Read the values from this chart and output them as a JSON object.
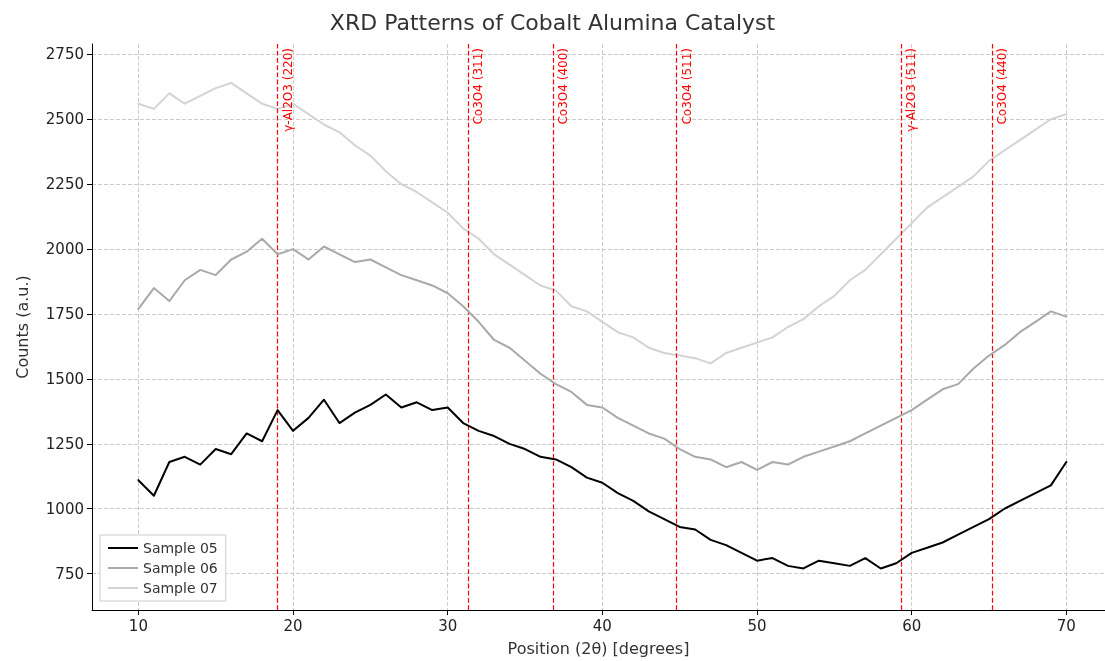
{
  "chart_data": {
    "type": "line",
    "title": "XRD Patterns of Cobalt Alumina Catalyst",
    "xlabel": "Position (2θ) [degrees]",
    "ylabel": "Counts (a.u.)",
    "x": [
      10,
      11,
      12,
      13,
      14,
      15,
      16,
      17,
      18,
      19,
      20,
      21,
      22,
      23,
      24,
      25,
      26,
      27,
      28,
      29,
      30,
      31,
      32,
      33,
      34,
      35,
      36,
      37,
      38,
      39,
      40,
      41,
      42,
      43,
      44,
      45,
      46,
      47,
      48,
      49,
      50,
      51,
      52,
      53,
      54,
      55,
      56,
      57,
      58,
      59,
      60,
      61,
      62,
      63,
      64,
      65,
      66,
      67,
      68,
      69,
      70
    ],
    "series": [
      {
        "name": "Sample 05",
        "color": "#000000",
        "values": [
          1110,
          1050,
          1180,
          1200,
          1170,
          1230,
          1210,
          1290,
          1260,
          1380,
          1300,
          1350,
          1420,
          1330,
          1370,
          1400,
          1440,
          1390,
          1410,
          1380,
          1390,
          1330,
          1300,
          1280,
          1250,
          1230,
          1200,
          1190,
          1160,
          1120,
          1100,
          1060,
          1030,
          990,
          960,
          930,
          920,
          880,
          860,
          830,
          800,
          810,
          780,
          770,
          800,
          790,
          780,
          810,
          770,
          790,
          830,
          850,
          870,
          900,
          930,
          960,
          1000,
          1030,
          1060,
          1090,
          1180
        ]
      },
      {
        "name": "Sample 06",
        "color": "#a9a9a9",
        "values": [
          1770,
          1850,
          1800,
          1880,
          1920,
          1900,
          1960,
          1990,
          2040,
          1980,
          2000,
          1960,
          2010,
          1980,
          1950,
          1960,
          1930,
          1900,
          1880,
          1860,
          1830,
          1780,
          1720,
          1650,
          1620,
          1570,
          1520,
          1480,
          1450,
          1400,
          1390,
          1350,
          1320,
          1290,
          1270,
          1230,
          1200,
          1190,
          1160,
          1180,
          1150,
          1180,
          1170,
          1200,
          1220,
          1240,
          1260,
          1290,
          1320,
          1350,
          1380,
          1420,
          1460,
          1480,
          1540,
          1590,
          1630,
          1680,
          1720,
          1760,
          1740
        ]
      },
      {
        "name": "Sample 07",
        "color": "#d3d3d3",
        "values": [
          2560,
          2540,
          2600,
          2560,
          2590,
          2620,
          2640,
          2600,
          2560,
          2540,
          2560,
          2520,
          2480,
          2450,
          2400,
          2360,
          2300,
          2250,
          2220,
          2180,
          2140,
          2080,
          2040,
          1980,
          1940,
          1900,
          1860,
          1840,
          1780,
          1760,
          1720,
          1680,
          1660,
          1620,
          1600,
          1590,
          1580,
          1560,
          1600,
          1620,
          1640,
          1660,
          1700,
          1730,
          1780,
          1820,
          1880,
          1920,
          1980,
          2040,
          2100,
          2160,
          2200,
          2240,
          2280,
          2340,
          2380,
          2420,
          2460,
          2500,
          2520
        ]
      }
    ],
    "xlim": [
      7,
      72.5
    ],
    "xticks": [
      10,
      20,
      30,
      40,
      50,
      60,
      70
    ],
    "ylim": [
      610,
      2790
    ],
    "yticks": [
      750,
      1000,
      1250,
      1500,
      1750,
      2000,
      2250,
      2500,
      2750
    ],
    "ref_lines": [
      {
        "axis": "x",
        "value": 19.0,
        "label": "γ-Al2O3 (220)",
        "color": "#ff0000",
        "line_style": "dashed"
      },
      {
        "axis": "x",
        "value": 31.3,
        "label": "Co3O4 (311)",
        "color": "#ff0000",
        "line_style": "dashed"
      },
      {
        "axis": "x",
        "value": 36.8,
        "label": "Co3O4 (400)",
        "color": "#ff0000",
        "line_style": "dashed"
      },
      {
        "axis": "x",
        "value": 44.8,
        "label": "Co3O4 (511)",
        "color": "#ff0000",
        "line_style": "dashed"
      },
      {
        "axis": "x",
        "value": 59.3,
        "label": "γ-Al2O3 (511)",
        "color": "#ff0000",
        "line_style": "dashed"
      },
      {
        "axis": "x",
        "value": 65.2,
        "label": "Co3O4 (440)",
        "color": "#ff0000",
        "line_style": "dashed"
      }
    ],
    "grid": true,
    "legend": "bottom left",
    "marker": "none",
    "line_style": "solid"
  }
}
